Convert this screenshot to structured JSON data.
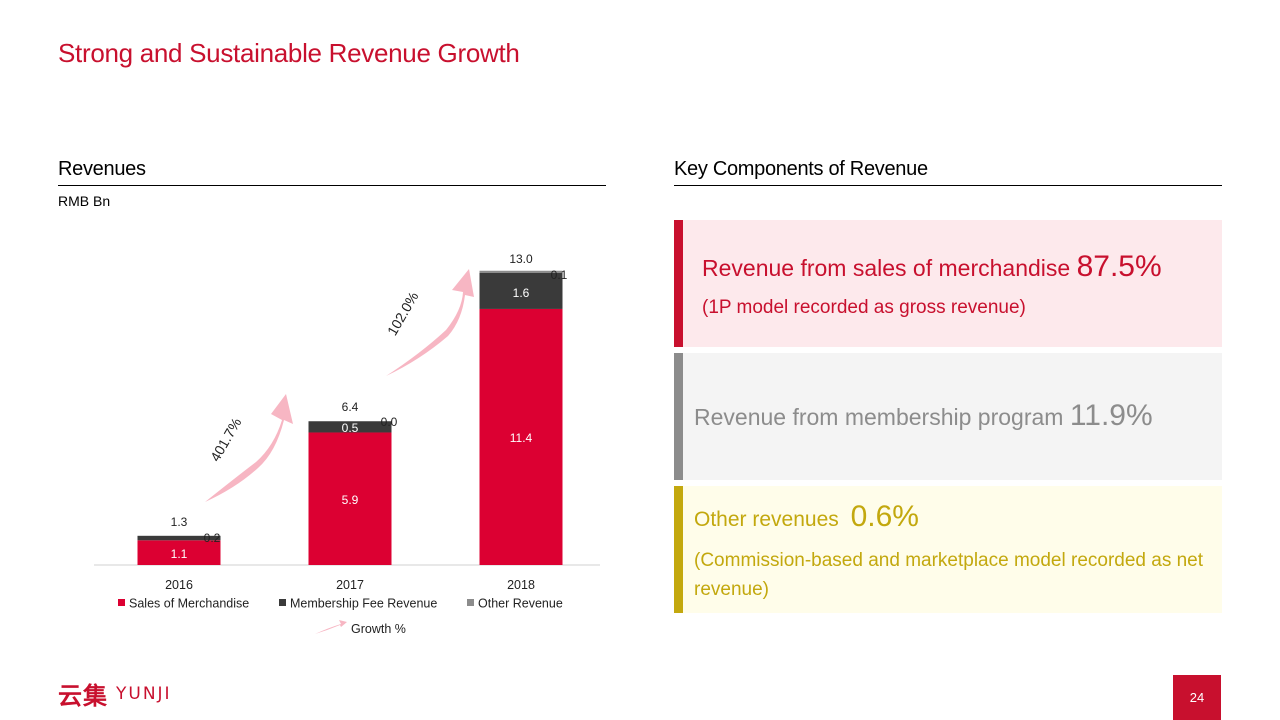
{
  "slide": {
    "title": "Strong and Sustainable Revenue Growth",
    "page_number": "24",
    "logo": {
      "chinese": "云集",
      "latin": "YUNJI"
    }
  },
  "left_panel": {
    "heading": "Revenues",
    "unit_label": "RMB Bn"
  },
  "right_panel": {
    "heading": "Key Components of Revenue",
    "cards": [
      {
        "label": "Revenue from sales of merchandise",
        "pct": "87.5%",
        "sub": "(1P model recorded as gross revenue)",
        "accent": "#c8102e",
        "bg": "#fde9ec",
        "text_color": "#c8102e"
      },
      {
        "label": "Revenue from membership program",
        "pct": "11.9%",
        "sub": "",
        "accent": "#8c8c8c",
        "bg": "#f4f4f4",
        "text_color": "#8c8c8c"
      },
      {
        "label": "Other revenues",
        "pct": "0.6%",
        "sub": "(Commission-based and marketplace model recorded as net revenue)",
        "accent": "#c3a80e",
        "bg": "#fffdea",
        "text_color": "#c3a80e"
      }
    ]
  },
  "chart_data": {
    "type": "bar",
    "stacked": true,
    "categories": [
      "2016",
      "2017",
      "2018"
    ],
    "series": [
      {
        "name": "Sales of Merchandise",
        "values": [
          1.1,
          5.9,
          11.4
        ],
        "color": "#dc0032",
        "labels": [
          "1.1",
          "5.9",
          "11.4"
        ]
      },
      {
        "name": "Membership Fee Revenue",
        "values": [
          0.2,
          0.5,
          1.6
        ],
        "color": "#3a3a3a",
        "labels": [
          "0.2",
          "0.5",
          "1.6"
        ]
      },
      {
        "name": "Other Revenue",
        "values": [
          0.0,
          0.0,
          0.1
        ],
        "color": "#8c8c8c",
        "labels": [
          "",
          "0.0",
          "0.1"
        ]
      }
    ],
    "totals": [
      "1.3",
      "6.4",
      "13.0"
    ],
    "growth": [
      {
        "from": "2016",
        "to": "2017",
        "label": "401.7%"
      },
      {
        "from": "2017",
        "to": "2018",
        "label": "102.0%"
      }
    ],
    "growth_legend": "Growth %",
    "growth_color": "#f7b6c3",
    "ylim": [
      0,
      13.5
    ],
    "unit": "RMB Bn",
    "legend_position": "bottom"
  }
}
